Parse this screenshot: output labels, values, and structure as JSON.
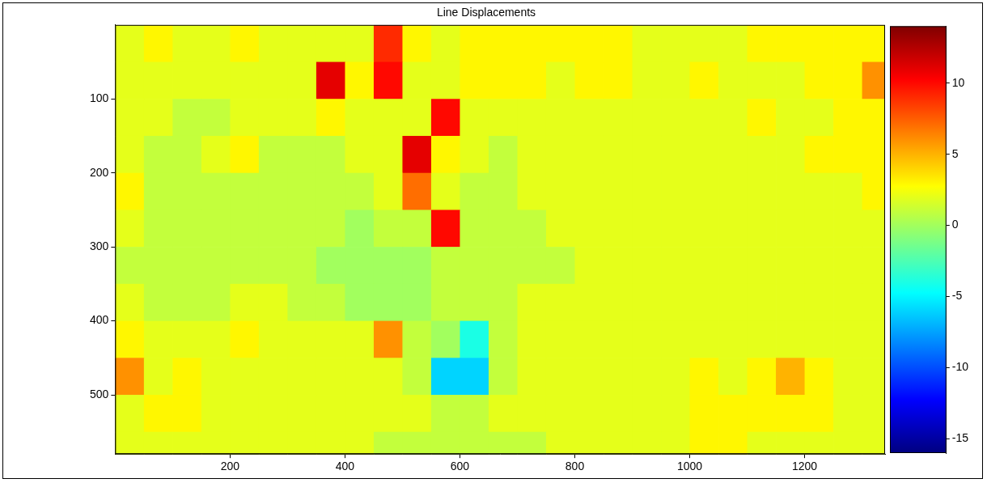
{
  "chart_data": {
    "type": "heatmap",
    "title": "Line Displacements",
    "x": [
      25,
      75,
      125,
      175,
      225,
      275,
      325,
      375,
      425,
      475,
      525,
      575,
      625,
      675,
      725,
      775,
      825,
      875,
      925,
      975,
      1025,
      1075,
      1125,
      1175,
      1225,
      1275,
      1325
    ],
    "y": [
      25,
      75,
      125,
      175,
      225,
      275,
      325,
      375,
      425,
      475,
      525,
      575
    ],
    "xlim": [
      0,
      1340
    ],
    "ylim": [
      0,
      580
    ],
    "xticks": [
      200,
      400,
      600,
      800,
      1000,
      1200
    ],
    "yticks": [
      100,
      200,
      300,
      400,
      500
    ],
    "grid": false,
    "cells": [
      [
        2,
        3,
        2,
        2,
        3,
        2,
        2,
        2,
        2,
        9,
        3,
        2,
        3,
        3,
        3,
        3,
        3,
        3,
        2,
        2,
        2,
        2,
        3,
        3,
        3,
        3,
        3
      ],
      [
        2,
        2,
        2,
        2,
        2,
        2,
        2,
        11,
        3,
        10,
        2,
        2,
        3,
        3,
        3,
        2,
        3,
        3,
        2,
        2,
        3,
        2,
        2,
        2,
        3,
        3,
        6
      ],
      [
        2,
        2,
        1,
        1,
        2,
        2,
        2,
        3,
        2,
        2,
        2,
        10,
        2,
        2,
        2,
        2,
        2,
        2,
        2,
        2,
        2,
        2,
        3,
        2,
        2,
        3,
        3
      ],
      [
        2,
        1,
        1,
        2,
        3,
        1,
        1,
        1,
        2,
        2,
        11,
        3,
        2,
        1,
        2,
        2,
        2,
        2,
        2,
        2,
        2,
        2,
        2,
        2,
        3,
        3,
        3
      ],
      [
        3,
        1,
        1,
        1,
        1,
        1,
        1,
        1,
        1,
        2,
        7,
        2,
        1,
        1,
        2,
        2,
        2,
        2,
        2,
        2,
        2,
        2,
        2,
        2,
        2,
        2,
        3
      ],
      [
        2,
        1,
        1,
        1,
        1,
        1,
        1,
        1,
        0,
        1,
        1,
        10,
        1,
        1,
        1,
        2,
        2,
        2,
        2,
        2,
        2,
        2,
        2,
        2,
        2,
        2,
        2
      ],
      [
        1,
        1,
        1,
        1,
        1,
        1,
        1,
        0,
        0,
        0,
        0,
        1,
        1,
        1,
        1,
        1,
        2,
        2,
        2,
        2,
        2,
        2,
        2,
        2,
        2,
        2,
        2
      ],
      [
        2,
        1,
        1,
        1,
        2,
        2,
        1,
        1,
        0,
        0,
        0,
        1,
        1,
        1,
        2,
        2,
        2,
        2,
        2,
        2,
        2,
        2,
        2,
        2,
        2,
        2,
        2
      ],
      [
        3,
        2,
        2,
        2,
        3,
        2,
        2,
        2,
        2,
        6,
        1,
        0,
        -4,
        1,
        2,
        2,
        2,
        2,
        2,
        2,
        2,
        2,
        2,
        2,
        2,
        2,
        2
      ],
      [
        6,
        2,
        3,
        2,
        2,
        2,
        2,
        2,
        2,
        2,
        1,
        -6,
        -6,
        1,
        2,
        2,
        2,
        2,
        2,
        2,
        3,
        2,
        3,
        5,
        3,
        2,
        2
      ],
      [
        2,
        3,
        3,
        2,
        2,
        2,
        2,
        2,
        2,
        2,
        2,
        1,
        1,
        2,
        2,
        2,
        2,
        2,
        2,
        2,
        3,
        3,
        3,
        3,
        3,
        2,
        2
      ],
      [
        2,
        2,
        2,
        2,
        2,
        2,
        2,
        2,
        2,
        1,
        1,
        1,
        1,
        1,
        1,
        2,
        2,
        2,
        2,
        2,
        3,
        3,
        2,
        2,
        2,
        2,
        2
      ]
    ],
    "colorbar": {
      "lim": [
        -16,
        14
      ],
      "ticks": [
        -15,
        -10,
        -5,
        0,
        5,
        10
      ]
    }
  }
}
